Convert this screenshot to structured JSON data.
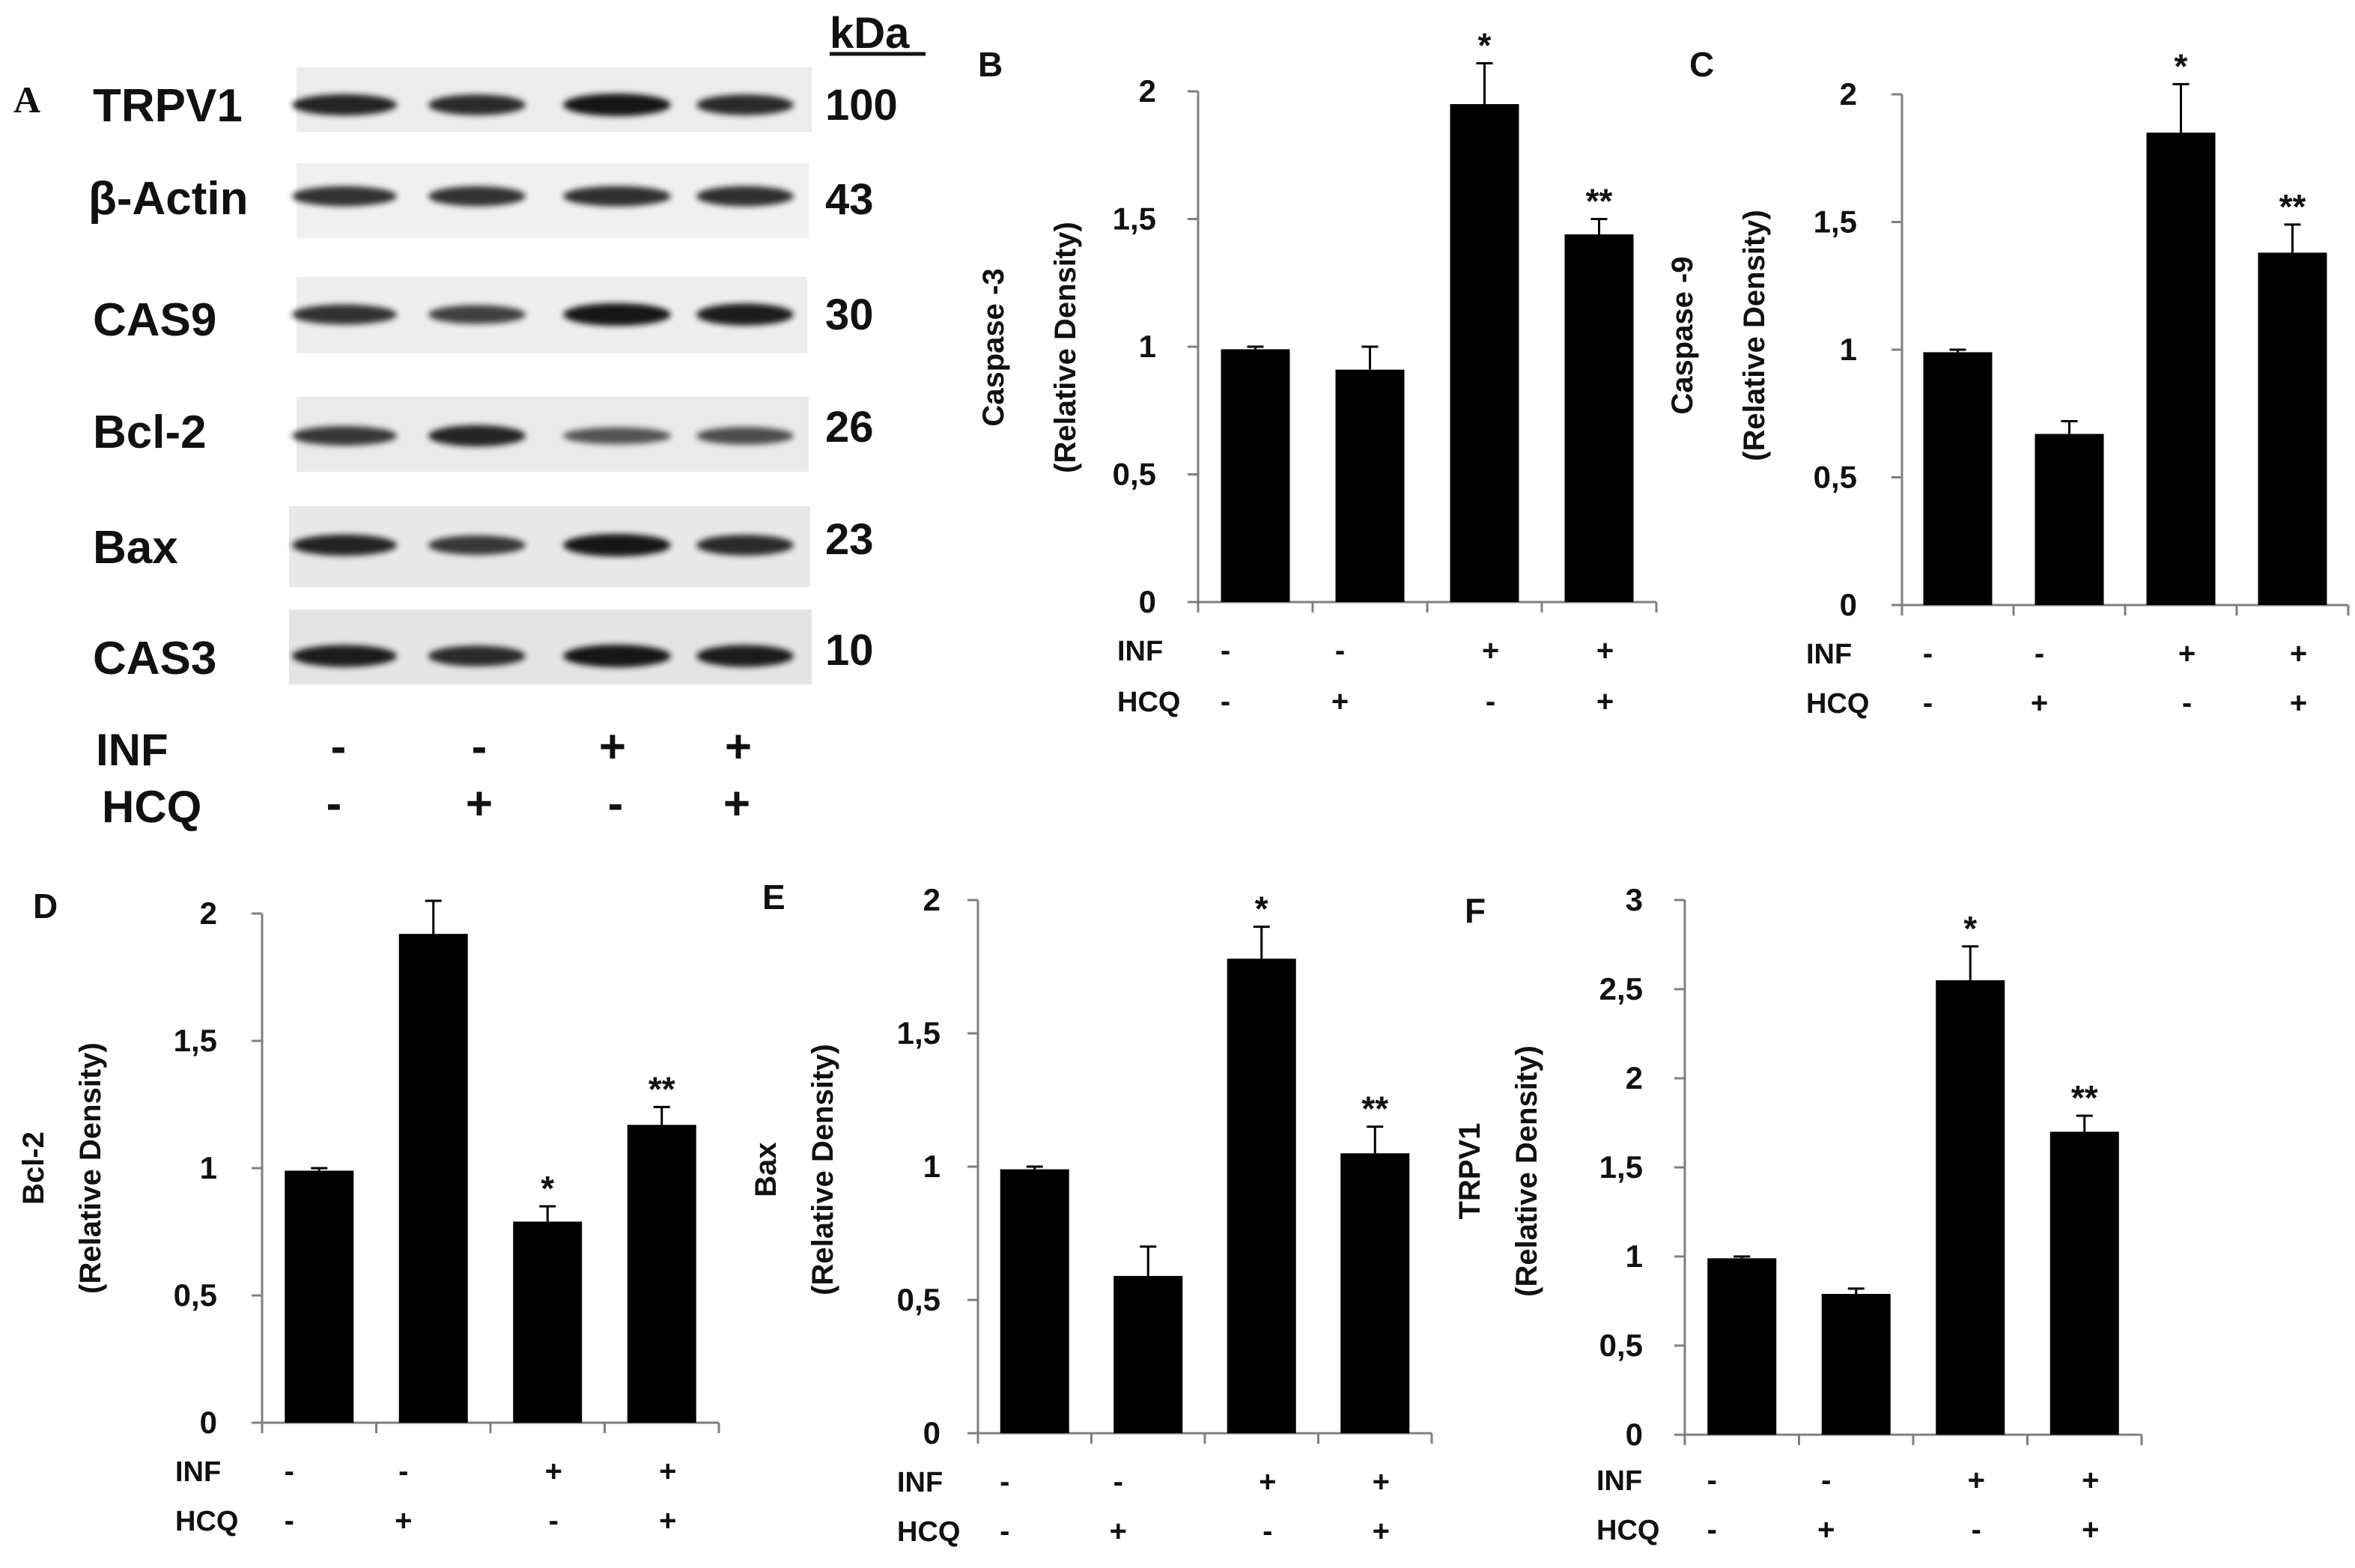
{
  "western_blot": {
    "panel_letter": "A",
    "kda_header": "kDa",
    "rows": [
      {
        "name": "TRPV1",
        "kda": "100",
        "band_intensity": [
          0.9,
          0.85,
          1.0,
          0.85
        ]
      },
      {
        "name": "β-Actin",
        "kda": "43",
        "band_intensity": [
          0.8,
          0.8,
          0.82,
          0.82
        ]
      },
      {
        "name": "CAS9",
        "kda": "30",
        "band_intensity": [
          0.8,
          0.7,
          1.0,
          0.95
        ]
      },
      {
        "name": "Bcl-2",
        "kda": "26",
        "band_intensity": [
          0.75,
          0.9,
          0.55,
          0.6
        ]
      },
      {
        "name": "Bax",
        "kda": "23",
        "band_intensity": [
          0.9,
          0.75,
          1.0,
          0.85
        ]
      },
      {
        "name": "CAS3",
        "kda": "10",
        "band_intensity": [
          0.95,
          0.85,
          1.0,
          0.95
        ]
      }
    ],
    "conditions": [
      {
        "label": "INF",
        "marks": [
          "-",
          "-",
          "+",
          "+"
        ]
      },
      {
        "label": "HCQ",
        "marks": [
          "-",
          "+",
          "-",
          "+"
        ]
      }
    ]
  },
  "chart_data": [
    {
      "panel": "B",
      "type": "bar",
      "ylabel": [
        "Caspase -3",
        "(Relative Density)"
      ],
      "ylim": [
        0,
        2
      ],
      "yticks": [
        "0",
        "0,5",
        "1",
        "1,5",
        "2"
      ],
      "ytick_values": [
        0,
        0.5,
        1,
        1.5,
        2
      ],
      "values": [
        0.99,
        0.91,
        1.95,
        1.44
      ],
      "errors": [
        0.01,
        0.09,
        0.16,
        0.06
      ],
      "significance": [
        "",
        "",
        "*",
        "**"
      ],
      "conditions": [
        {
          "label": "INF",
          "marks": [
            "-",
            "-",
            "+",
            "+"
          ]
        },
        {
          "label": "HCQ",
          "marks": [
            "-",
            "+",
            "-",
            "+"
          ]
        }
      ]
    },
    {
      "panel": "C",
      "type": "bar",
      "ylabel": [
        "Caspase -9",
        "(Relative Density)"
      ],
      "ylim": [
        0,
        2
      ],
      "yticks": [
        "0",
        "0,5",
        "1",
        "1,5",
        "2"
      ],
      "ytick_values": [
        0,
        0.5,
        1,
        1.5,
        2
      ],
      "values": [
        0.99,
        0.67,
        1.85,
        1.38
      ],
      "errors": [
        0.01,
        0.05,
        0.19,
        0.11
      ],
      "significance": [
        "",
        "",
        "*",
        "**"
      ],
      "conditions": [
        {
          "label": "INF",
          "marks": [
            "-",
            "-",
            "+",
            "+"
          ]
        },
        {
          "label": "HCQ",
          "marks": [
            "-",
            "+",
            "-",
            "+"
          ]
        }
      ]
    },
    {
      "panel": "D",
      "type": "bar",
      "ylabel": [
        "Bcl-2",
        "(Relative Density)"
      ],
      "ylim": [
        0,
        2
      ],
      "yticks": [
        "0",
        "0,5",
        "1",
        "1,5",
        "2"
      ],
      "ytick_values": [
        0,
        0.5,
        1,
        1.5,
        2
      ],
      "values": [
        0.99,
        1.92,
        0.79,
        1.17
      ],
      "errors": [
        0.01,
        0.13,
        0.06,
        0.07
      ],
      "significance": [
        "",
        "",
        "*",
        "**"
      ],
      "conditions": [
        {
          "label": "INF",
          "marks": [
            "-",
            "-",
            "+",
            "+"
          ]
        },
        {
          "label": "HCQ",
          "marks": [
            "-",
            "+",
            "-",
            "+"
          ]
        }
      ]
    },
    {
      "panel": "E",
      "type": "bar",
      "ylabel": [
        "Bax",
        "(Relative Density)"
      ],
      "ylim": [
        0,
        2
      ],
      "yticks": [
        "0",
        "0,5",
        "1",
        "1,5",
        "2"
      ],
      "ytick_values": [
        0,
        0.5,
        1,
        1.5,
        2
      ],
      "values": [
        0.99,
        0.59,
        1.78,
        1.05
      ],
      "errors": [
        0.01,
        0.11,
        0.12,
        0.1
      ],
      "significance": [
        "",
        "",
        "*",
        "**"
      ],
      "conditions": [
        {
          "label": "INF",
          "marks": [
            "-",
            "-",
            "+",
            "+"
          ]
        },
        {
          "label": "HCQ",
          "marks": [
            "-",
            "+",
            "-",
            "+"
          ]
        }
      ]
    },
    {
      "panel": "F",
      "type": "bar",
      "ylabel": [
        "TRPV1",
        "(Relative Density)"
      ],
      "ylim": [
        0,
        3
      ],
      "yticks": [
        "0",
        "0,5",
        "1",
        "1,5",
        "2",
        "2,5",
        "3"
      ],
      "ytick_values": [
        0,
        0.5,
        1,
        1.5,
        2,
        2.5,
        3
      ],
      "values": [
        0.99,
        0.79,
        2.55,
        1.7
      ],
      "errors": [
        0.01,
        0.03,
        0.19,
        0.09
      ],
      "significance": [
        "",
        "",
        "*",
        "**"
      ],
      "conditions": [
        {
          "label": "INF",
          "marks": [
            "-",
            "-",
            "+",
            "+"
          ]
        },
        {
          "label": "HCQ",
          "marks": [
            "-",
            "+",
            "-",
            "+"
          ]
        }
      ]
    }
  ],
  "colors": {
    "bar": "#000000",
    "axis": "#7f7f7f",
    "text": "#111111",
    "band": "#141414"
  }
}
